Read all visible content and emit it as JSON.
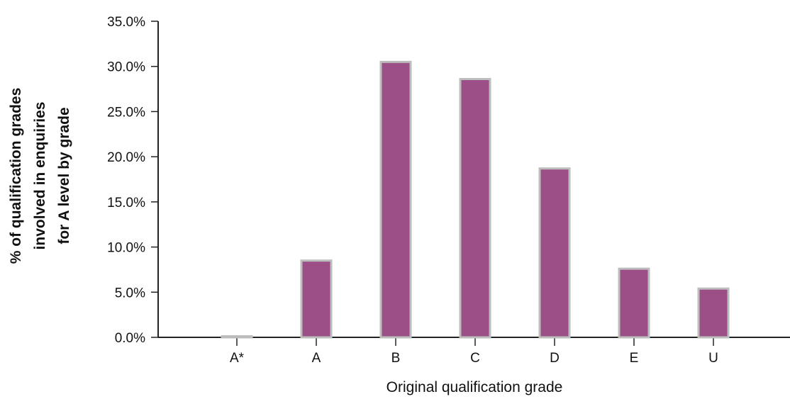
{
  "chart_data": {
    "type": "bar",
    "categories": [
      "A*",
      "A",
      "B",
      "C",
      "D",
      "E",
      "U"
    ],
    "values": [
      0.0,
      8.5,
      30.5,
      28.6,
      18.7,
      7.6,
      5.4
    ],
    "xlabel": "Original qualification grade",
    "ylabel_lines": [
      "% of qualification grades",
      "involved in enquiries",
      "for A level by grade"
    ],
    "ylim": [
      0,
      35
    ],
    "yticks": [
      0,
      5,
      10,
      15,
      20,
      25,
      30,
      35
    ],
    "ytick_labels": [
      "0.0%",
      "5.0%",
      "10.0%",
      "15.0%",
      "20.0%",
      "25.0%",
      "30.0%",
      "35.0%"
    ],
    "grid": false,
    "legend": "none",
    "colors": {
      "bar_fill": "#9b4f86",
      "bar_stroke": "#bdbdbd",
      "axis": "#222222"
    }
  }
}
